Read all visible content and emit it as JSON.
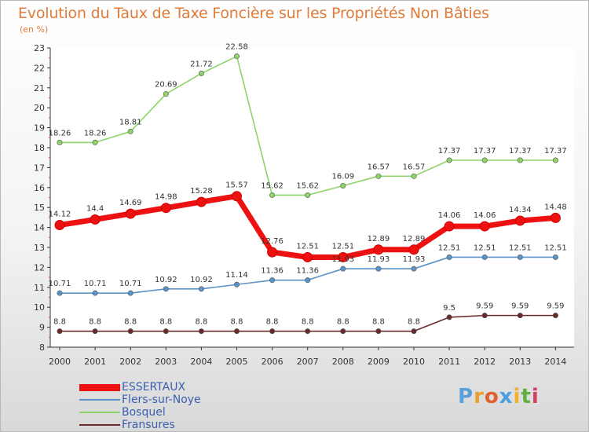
{
  "title": "Evolution du Taux de Taxe Foncière sur les Propriétés Non Bâties",
  "unit_label": "(en %)",
  "logo": "Proxiti",
  "chart_data": {
    "type": "line",
    "x": [
      "2000",
      "2001",
      "2002",
      "2003",
      "2004",
      "2005",
      "2006",
      "2007",
      "2008",
      "2009",
      "2010",
      "2011",
      "2012",
      "2013",
      "2014"
    ],
    "ylim": [
      8,
      23
    ],
    "yticks": [
      8,
      9,
      10,
      11,
      12,
      13,
      14,
      15,
      16,
      17,
      18,
      19,
      20,
      21,
      22,
      23
    ],
    "grid": false,
    "legend_placement": "bottom-left",
    "series": [
      {
        "name": "ESSERTAUX",
        "color": "#ee1111",
        "values": [
          14.12,
          14.4,
          14.69,
          14.98,
          15.28,
          15.57,
          12.76,
          12.51,
          12.51,
          12.89,
          12.89,
          14.06,
          14.06,
          14.34,
          14.48
        ],
        "labels": [
          "14.12",
          "14.4",
          "14.69",
          "14.98",
          "15.28",
          "15.57",
          "12.76",
          "12.51",
          "12.51",
          "12.89",
          "12.89",
          "14.06",
          "14.06",
          "14.34",
          "14.48"
        ]
      },
      {
        "name": "Flers-sur-Noye",
        "color": "#5b93c8",
        "values": [
          10.71,
          10.71,
          10.71,
          10.92,
          10.92,
          11.14,
          11.36,
          11.36,
          11.93,
          11.93,
          11.93,
          12.51,
          12.51,
          12.51,
          12.51
        ],
        "labels": [
          "10.71",
          "10.71",
          "10.71",
          "10.92",
          "10.92",
          "11.14",
          "11.36",
          "11.36",
          "11.93",
          "11.93",
          "11.93",
          "12.51",
          "12.51",
          "12.51",
          "12.51"
        ]
      },
      {
        "name": "Bosquel",
        "color": "#8ed46a",
        "values": [
          18.26,
          18.26,
          18.81,
          20.69,
          21.72,
          22.58,
          15.62,
          15.62,
          16.09,
          16.57,
          16.57,
          17.37,
          17.37,
          17.37,
          17.37
        ],
        "labels": [
          "18.26",
          "18.26",
          "18.81",
          "20.69",
          "21.72",
          "22.58",
          "15.62",
          "15.62",
          "16.09",
          "16.57",
          "16.57",
          "17.37",
          "17.37",
          "17.37",
          "17.37"
        ]
      },
      {
        "name": "Fransures",
        "color": "#6b2a2a",
        "values": [
          8.8,
          8.8,
          8.8,
          8.8,
          8.8,
          8.8,
          8.8,
          8.8,
          8.8,
          8.8,
          8.8,
          9.5,
          9.59,
          9.59,
          9.59
        ],
        "labels": [
          "8.8",
          "8.8",
          "8.8",
          "8.8",
          "8.8",
          "8.8",
          "8.8",
          "8.8",
          "8.8",
          "8.8",
          "8.8",
          "9.5",
          "9.59",
          "9.59",
          "9.59"
        ]
      }
    ]
  }
}
